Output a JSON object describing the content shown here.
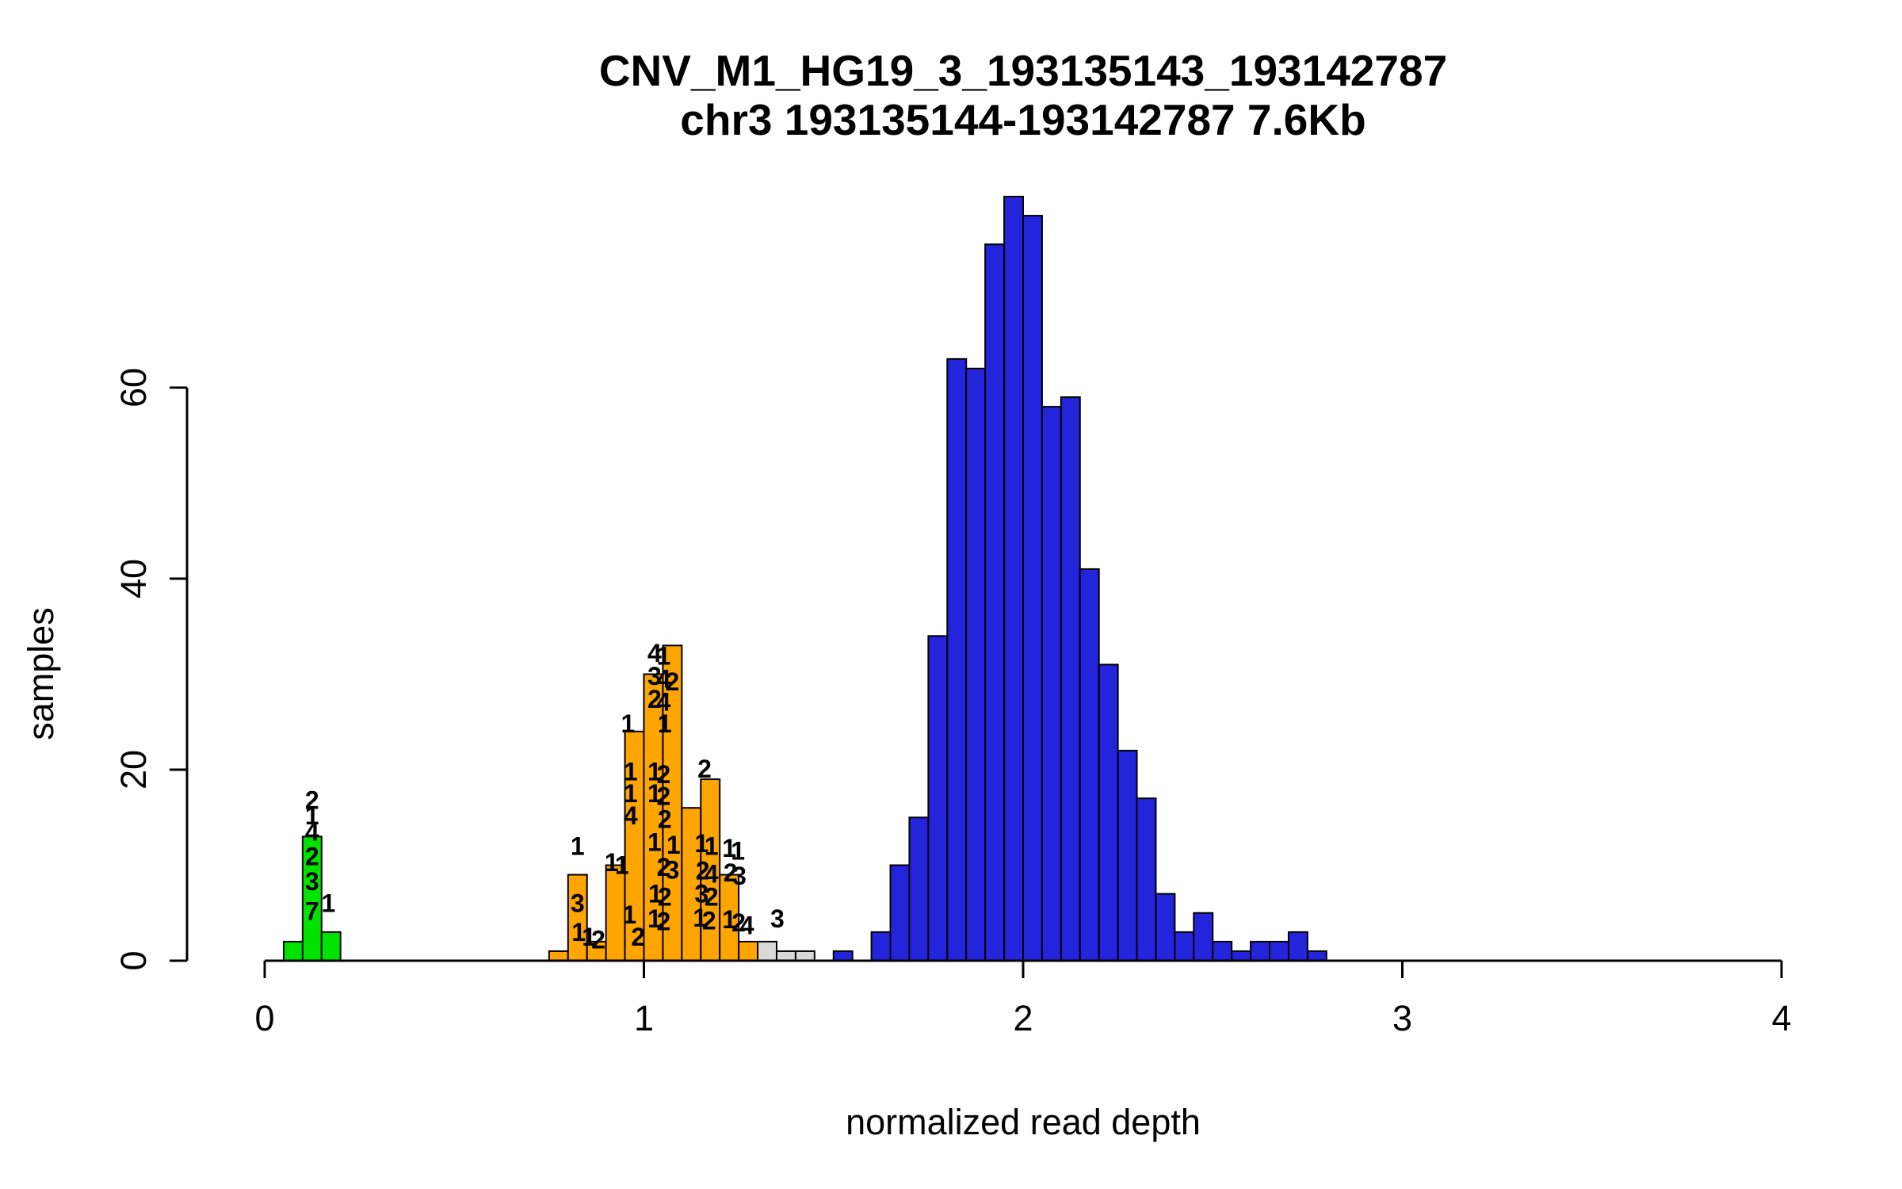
{
  "chart_data": {
    "type": "bar",
    "title": "CNV_M1_HG19_3_193135143_193142787",
    "subtitle": "chr3 193135144-193142787 7.6Kb",
    "xlabel": "normalized read depth",
    "ylabel": "samples",
    "xlim": [
      0,
      4
    ],
    "ylim": [
      0,
      80
    ],
    "x_ticks": [
      0,
      1,
      2,
      3,
      4
    ],
    "y_ticks": [
      0,
      20,
      40,
      60
    ],
    "bin_width": 0.05,
    "grid": false,
    "legend": "none",
    "colors": {
      "green": "#00e300",
      "orange": "#ffa500",
      "grey": "#d9d9d9",
      "blue": "#2424dd"
    },
    "bars": [
      {
        "x": 0.05,
        "h": 2,
        "c": "green"
      },
      {
        "x": 0.1,
        "h": 13,
        "c": "green"
      },
      {
        "x": 0.15,
        "h": 3,
        "c": "green"
      },
      {
        "x": 0.75,
        "h": 1,
        "c": "orange"
      },
      {
        "x": 0.8,
        "h": 9,
        "c": "orange"
      },
      {
        "x": 0.85,
        "h": 2,
        "c": "orange"
      },
      {
        "x": 0.9,
        "h": 10,
        "c": "orange"
      },
      {
        "x": 0.95,
        "h": 24,
        "c": "orange"
      },
      {
        "x": 1.0,
        "h": 30,
        "c": "orange"
      },
      {
        "x": 1.05,
        "h": 33,
        "c": "orange"
      },
      {
        "x": 1.1,
        "h": 16,
        "c": "orange"
      },
      {
        "x": 1.15,
        "h": 19,
        "c": "orange"
      },
      {
        "x": 1.2,
        "h": 9,
        "c": "orange"
      },
      {
        "x": 1.25,
        "h": 2,
        "c": "orange"
      },
      {
        "x": 1.3,
        "h": 2,
        "c": "grey"
      },
      {
        "x": 1.35,
        "h": 1,
        "c": "grey"
      },
      {
        "x": 1.4,
        "h": 1,
        "c": "grey"
      },
      {
        "x": 1.5,
        "h": 1,
        "c": "blue"
      },
      {
        "x": 1.6,
        "h": 3,
        "c": "blue"
      },
      {
        "x": 1.65,
        "h": 10,
        "c": "blue"
      },
      {
        "x": 1.7,
        "h": 15,
        "c": "blue"
      },
      {
        "x": 1.75,
        "h": 34,
        "c": "blue"
      },
      {
        "x": 1.8,
        "h": 63,
        "c": "blue"
      },
      {
        "x": 1.85,
        "h": 62,
        "c": "blue"
      },
      {
        "x": 1.9,
        "h": 75,
        "c": "blue"
      },
      {
        "x": 1.95,
        "h": 80,
        "c": "blue"
      },
      {
        "x": 2.0,
        "h": 78,
        "c": "blue"
      },
      {
        "x": 2.05,
        "h": 58,
        "c": "blue"
      },
      {
        "x": 2.1,
        "h": 59,
        "c": "blue"
      },
      {
        "x": 2.15,
        "h": 41,
        "c": "blue"
      },
      {
        "x": 2.2,
        "h": 31,
        "c": "blue"
      },
      {
        "x": 2.25,
        "h": 22,
        "c": "blue"
      },
      {
        "x": 2.3,
        "h": 17,
        "c": "blue"
      },
      {
        "x": 2.35,
        "h": 7,
        "c": "blue"
      },
      {
        "x": 2.4,
        "h": 3,
        "c": "blue"
      },
      {
        "x": 2.45,
        "h": 5,
        "c": "blue"
      },
      {
        "x": 2.5,
        "h": 2,
        "c": "blue"
      },
      {
        "x": 2.55,
        "h": 1,
        "c": "blue"
      },
      {
        "x": 2.6,
        "h": 2,
        "c": "blue"
      },
      {
        "x": 2.65,
        "h": 2,
        "c": "blue"
      },
      {
        "x": 2.7,
        "h": 3,
        "c": "blue"
      },
      {
        "x": 2.75,
        "h": 1,
        "c": "blue"
      }
    ],
    "annotations": [
      {
        "x": 0.125,
        "y": 16.8,
        "t": "2"
      },
      {
        "x": 0.125,
        "y": 15.2,
        "t": "1"
      },
      {
        "x": 0.125,
        "y": 13.5,
        "t": "4"
      },
      {
        "x": 0.125,
        "y": 10.9,
        "t": "2"
      },
      {
        "x": 0.125,
        "y": 8.3,
        "t": "3"
      },
      {
        "x": 0.125,
        "y": 5.2,
        "t": "7"
      },
      {
        "x": 0.168,
        "y": 6.0,
        "t": "1"
      },
      {
        "x": 0.825,
        "y": 12.0,
        "t": "1"
      },
      {
        "x": 0.825,
        "y": 6.0,
        "t": "3"
      },
      {
        "x": 0.828,
        "y": 3.0,
        "t": "1"
      },
      {
        "x": 0.855,
        "y": 2.5,
        "t": "1"
      },
      {
        "x": 0.88,
        "y": 2.2,
        "t": "2"
      },
      {
        "x": 0.915,
        "y": 10.3,
        "t": "1"
      },
      {
        "x": 0.942,
        "y": 10.0,
        "t": "1"
      },
      {
        "x": 0.958,
        "y": 24.8,
        "t": "1"
      },
      {
        "x": 0.965,
        "y": 19.8,
        "t": "1"
      },
      {
        "x": 0.965,
        "y": 17.5,
        "t": "1"
      },
      {
        "x": 0.965,
        "y": 15.2,
        "t": "4"
      },
      {
        "x": 0.962,
        "y": 4.8,
        "t": "1"
      },
      {
        "x": 0.985,
        "y": 2.5,
        "t": "2"
      },
      {
        "x": 1.028,
        "y": 32.2,
        "t": "4"
      },
      {
        "x": 1.052,
        "y": 31.9,
        "t": "1"
      },
      {
        "x": 1.028,
        "y": 29.8,
        "t": "3"
      },
      {
        "x": 1.052,
        "y": 29.5,
        "t": "4"
      },
      {
        "x": 1.075,
        "y": 29.2,
        "t": "2"
      },
      {
        "x": 1.028,
        "y": 27.4,
        "t": "2"
      },
      {
        "x": 1.052,
        "y": 27.1,
        "t": "4"
      },
      {
        "x": 1.055,
        "y": 24.8,
        "t": "1"
      },
      {
        "x": 1.028,
        "y": 19.8,
        "t": "1"
      },
      {
        "x": 1.052,
        "y": 19.5,
        "t": "2"
      },
      {
        "x": 1.028,
        "y": 17.5,
        "t": "1"
      },
      {
        "x": 1.052,
        "y": 17.2,
        "t": "2"
      },
      {
        "x": 1.055,
        "y": 14.8,
        "t": "2"
      },
      {
        "x": 1.028,
        "y": 12.4,
        "t": "1"
      },
      {
        "x": 1.078,
        "y": 12.1,
        "t": "1"
      },
      {
        "x": 1.052,
        "y": 9.8,
        "t": "2"
      },
      {
        "x": 1.075,
        "y": 9.5,
        "t": "3"
      },
      {
        "x": 1.03,
        "y": 7.0,
        "t": "1"
      },
      {
        "x": 1.055,
        "y": 6.7,
        "t": "2"
      },
      {
        "x": 1.028,
        "y": 4.4,
        "t": "1"
      },
      {
        "x": 1.052,
        "y": 4.1,
        "t": "2"
      },
      {
        "x": 1.16,
        "y": 20.1,
        "t": "2"
      },
      {
        "x": 1.152,
        "y": 12.3,
        "t": "1"
      },
      {
        "x": 1.178,
        "y": 12.0,
        "t": "1"
      },
      {
        "x": 1.155,
        "y": 9.4,
        "t": "2"
      },
      {
        "x": 1.178,
        "y": 9.1,
        "t": "4"
      },
      {
        "x": 1.152,
        "y": 7.0,
        "t": "3"
      },
      {
        "x": 1.178,
        "y": 6.7,
        "t": "2"
      },
      {
        "x": 1.148,
        "y": 4.5,
        "t": "1"
      },
      {
        "x": 1.172,
        "y": 4.2,
        "t": "2"
      },
      {
        "x": 1.225,
        "y": 11.8,
        "t": "1"
      },
      {
        "x": 1.248,
        "y": 11.5,
        "t": "1"
      },
      {
        "x": 1.228,
        "y": 9.2,
        "t": "2"
      },
      {
        "x": 1.252,
        "y": 8.9,
        "t": "3"
      },
      {
        "x": 1.225,
        "y": 4.3,
        "t": "1"
      },
      {
        "x": 1.25,
        "y": 4.0,
        "t": "2"
      },
      {
        "x": 1.272,
        "y": 3.7,
        "t": "4"
      },
      {
        "x": 1.352,
        "y": 4.4,
        "t": "3"
      }
    ]
  }
}
